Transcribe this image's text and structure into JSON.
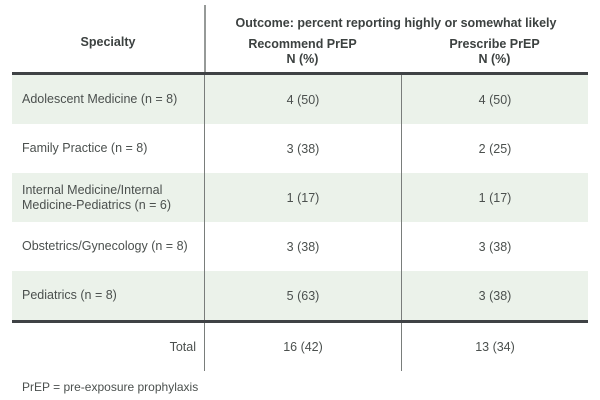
{
  "table": {
    "header": {
      "specialty": "Specialty",
      "outcome_group": "Outcome: percent reporting highly or somewhat likely",
      "recommend_title": "Recommend PrEP",
      "recommend_unit": "N (%)",
      "prescribe_title": "Prescribe PrEP",
      "prescribe_unit": "N (%)"
    },
    "rows": [
      {
        "specialty": "Adolescent Medicine (n = 8)",
        "recommend": "4 (50)",
        "prescribe": "4 (50)"
      },
      {
        "specialty": "Family Practice (n = 8)",
        "recommend": "3 (38)",
        "prescribe": "2 (25)"
      },
      {
        "specialty": "Internal Medicine/Internal Medicine-Pediatrics (n = 6)",
        "recommend": "1 (17)",
        "prescribe": "1 (17)"
      },
      {
        "specialty": "Obstetrics/Gynecology (n = 8)",
        "recommend": "3 (38)",
        "prescribe": "3 (38)"
      },
      {
        "specialty": "Pediatrics (n = 8)",
        "recommend": "5 (63)",
        "prescribe": "3 (38)"
      }
    ],
    "total": {
      "label": "Total",
      "recommend": "16 (42)",
      "prescribe": "13 (34)"
    },
    "footnote": "PrEP = pre-exposure prophylaxis"
  },
  "colors": {
    "row_shade": "#ebf2ea",
    "rule_dark": "#3f4245",
    "header_divider": "#969a98",
    "column_divider": "#797d7b",
    "text": "#4b504e"
  },
  "chart_data": {
    "type": "table",
    "title": "Outcome: percent reporting highly or somewhat likely",
    "columns": [
      "Specialty",
      "Recommend PrEP N (%)",
      "Prescribe PrEP N (%)"
    ],
    "rows": [
      [
        "Adolescent Medicine (n = 8)",
        "4 (50)",
        "4 (50)"
      ],
      [
        "Family Practice (n = 8)",
        "3 (38)",
        "2 (25)"
      ],
      [
        "Internal Medicine/Internal Medicine-Pediatrics (n = 6)",
        "1 (17)",
        "1 (17)"
      ],
      [
        "Obstetrics/Gynecology (n = 8)",
        "3 (38)",
        "3 (38)"
      ],
      [
        "Pediatrics (n = 8)",
        "5 (63)",
        "3 (38)"
      ],
      [
        "Total",
        "16 (42)",
        "13 (34)"
      ]
    ],
    "footnote": "PrEP = pre-exposure prophylaxis"
  }
}
